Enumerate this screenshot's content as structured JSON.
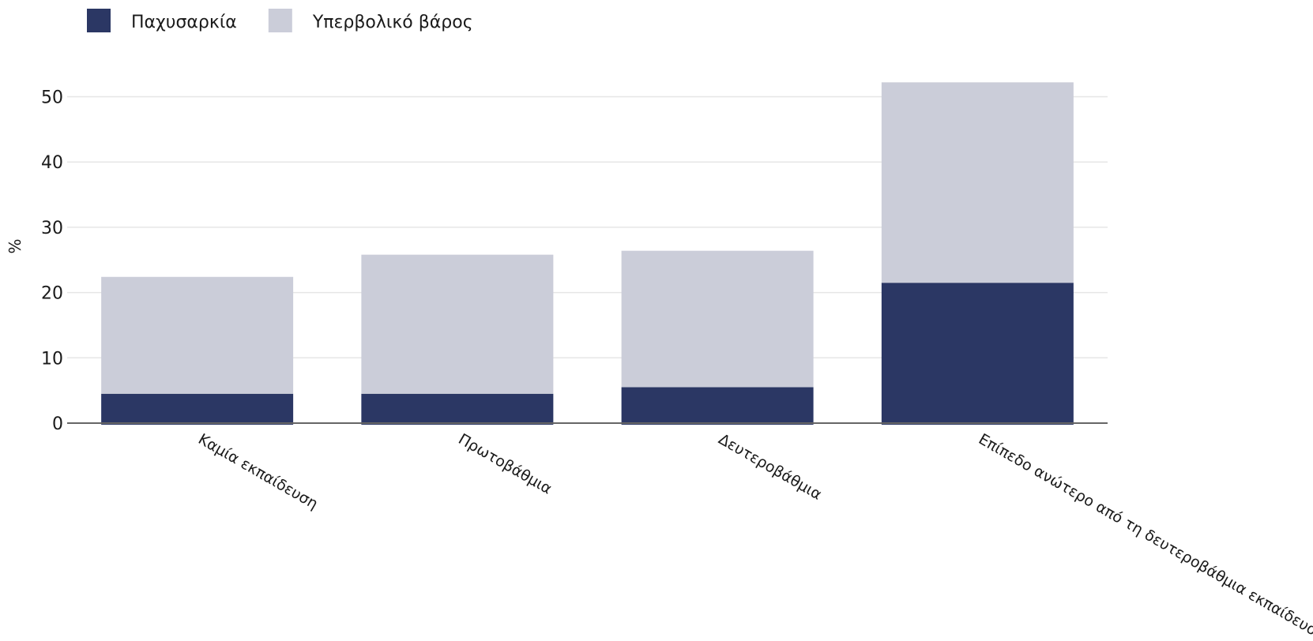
{
  "chart_data": {
    "type": "bar",
    "stacked": true,
    "title": "",
    "xlabel": "",
    "ylabel": "%",
    "ylim": [
      0,
      52.5
    ],
    "yticks": [
      0,
      10,
      20,
      30,
      40,
      50
    ],
    "grid": "horizontal",
    "legend_position": "top-left",
    "categories": [
      "Καμία εκπαίδευση",
      "Πρωτοβάθμια",
      "Δευτεροβάθμια",
      "Επίπεδο ανώτερο από τη δευτεροβάθμια εκπαίδευση"
    ],
    "series": [
      {
        "name": "Παχυσαρκία",
        "color": "#2b3764",
        "values": [
          4.5,
          4.5,
          5.5,
          21.5
        ]
      },
      {
        "name": "Υπερβολικό βάρος",
        "color": "#cbcdd9",
        "values": [
          17.9,
          21.3,
          20.9,
          30.7
        ]
      }
    ]
  }
}
